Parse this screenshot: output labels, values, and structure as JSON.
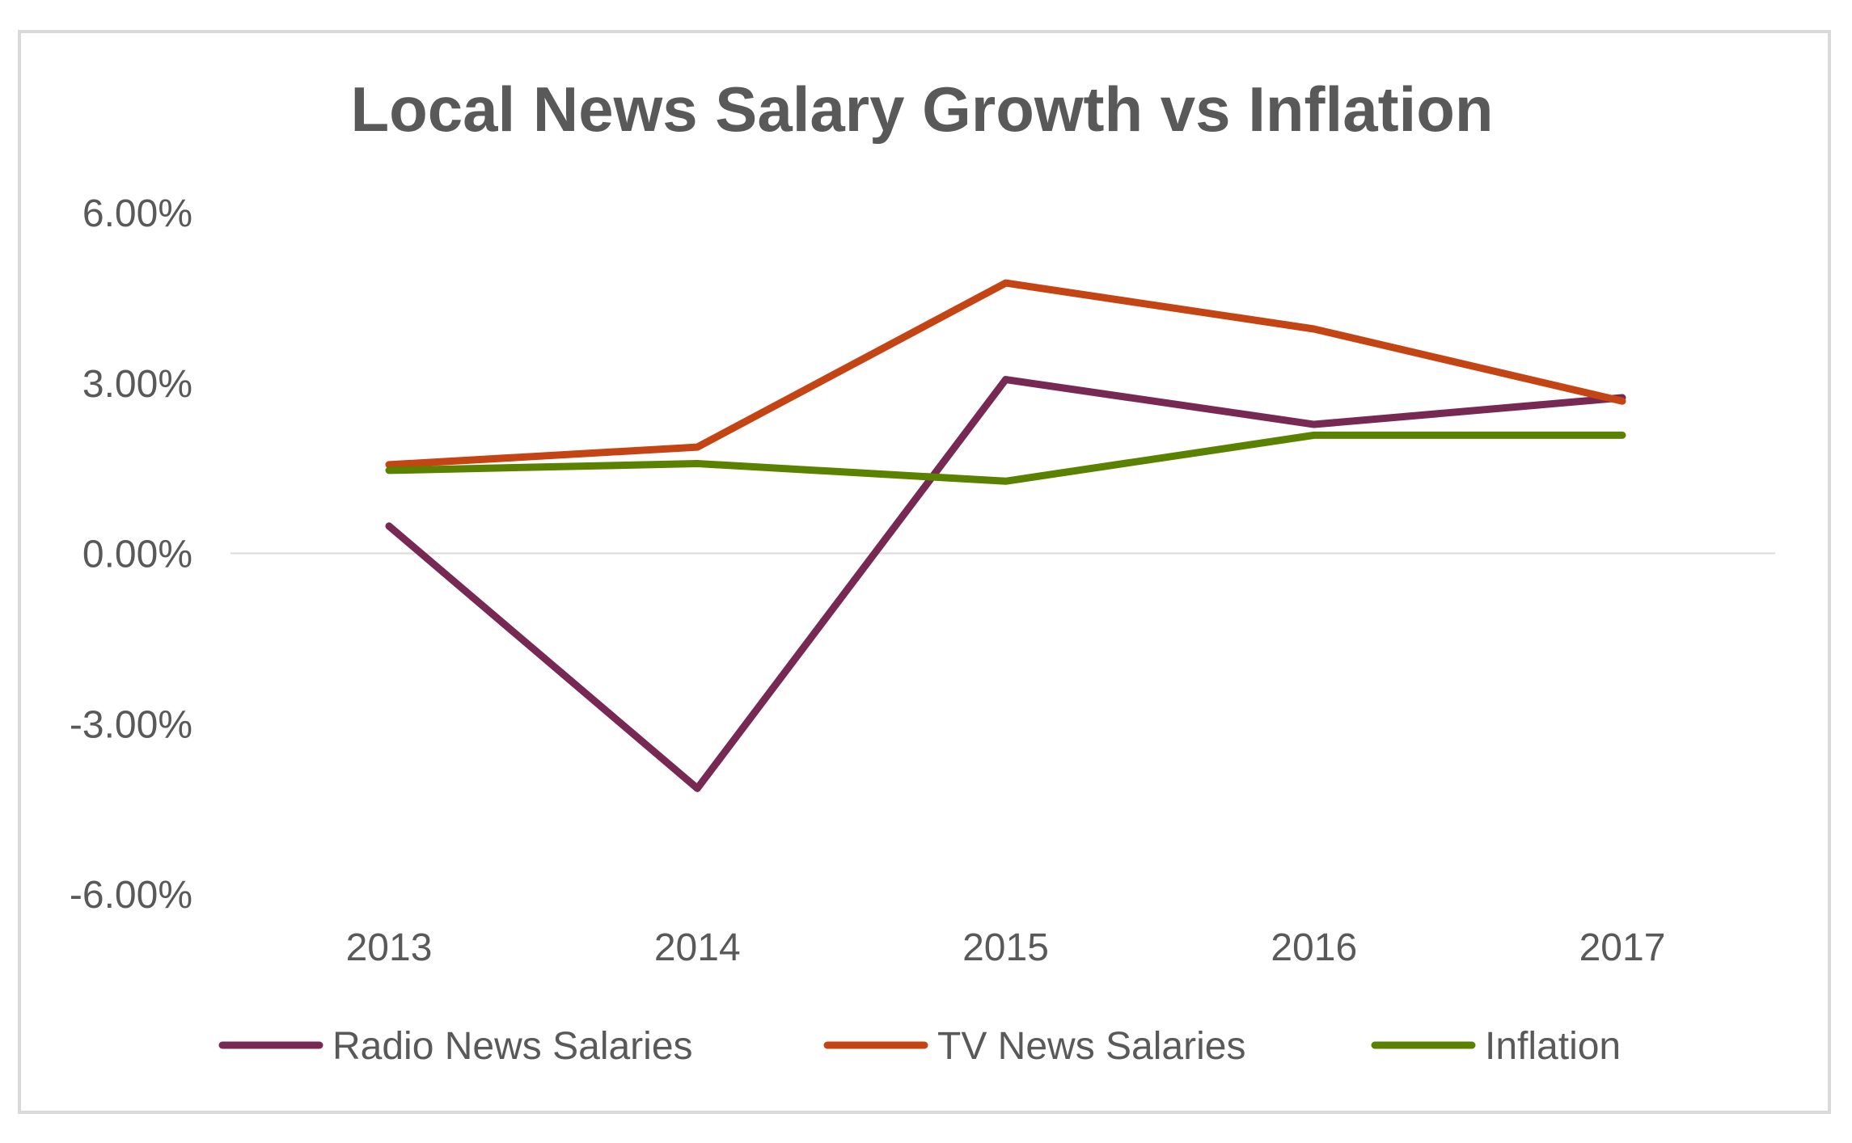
{
  "chart_data": {
    "type": "line",
    "title": "Local News Salary Growth vs Inflation",
    "xlabel": "",
    "ylabel": "",
    "categories": [
      "2013",
      "2014",
      "2015",
      "2016",
      "2017"
    ],
    "ylim": [
      -6,
      6
    ],
    "yticks": [
      6,
      3,
      0,
      -3,
      -6
    ],
    "ytick_labels": [
      "6.00%",
      "3.00%",
      "0.00%",
      "-3.00%",
      "-6.00%"
    ],
    "grid": "zero-line only",
    "legend_position": "bottom",
    "series": [
      {
        "name": "Radio News Salaries",
        "color": "#772953",
        "values": [
          0.48,
          -4.14,
          3.06,
          2.27,
          2.74
        ]
      },
      {
        "name": "TV News Salaries",
        "color": "#C54414",
        "values": [
          1.56,
          1.87,
          4.76,
          3.95,
          2.68
        ]
      },
      {
        "name": "Inflation",
        "color": "#5B8100",
        "values": [
          1.46,
          1.58,
          1.27,
          2.08,
          2.08
        ]
      }
    ]
  }
}
